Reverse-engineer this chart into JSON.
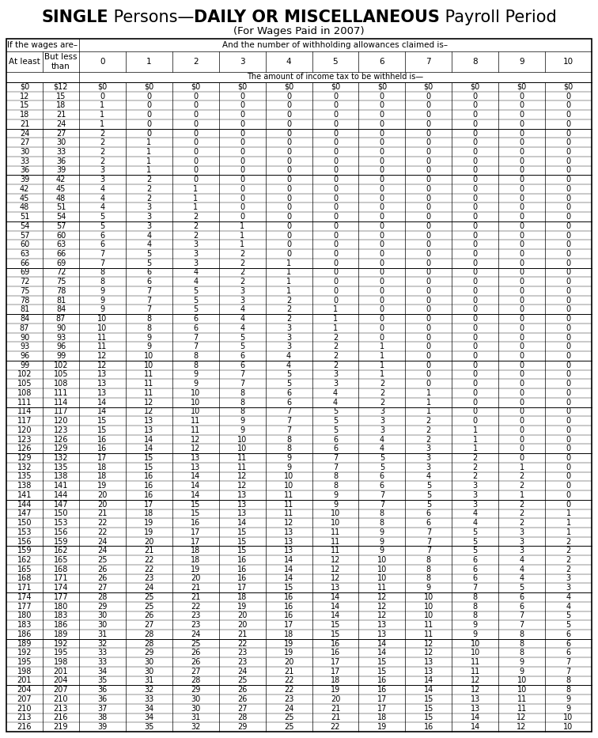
{
  "title_bold": "SINGLE",
  "title_regular": " Persons—",
  "title_bold2": "DAILY OR MISCELLANEOUS",
  "title_regular2": " Payroll Period",
  "subtitle": "(For Wages Paid in 2007)",
  "col_header_left": "If the wages are–",
  "col_header_right": "And the number of withholding allowances claimed is–",
  "col_sub_header": "The amount of income tax to be withheld is—",
  "col_at_least": "At least",
  "col_but_less": "But less\nthan",
  "allowances": [
    "0",
    "1",
    "2",
    "3",
    "4",
    "5",
    "6",
    "7",
    "8",
    "9",
    "10"
  ],
  "title_fontsize": 15,
  "subtitle_fontsize": 9.5,
  "header_fontsize": 7.5,
  "data_fontsize": 7.0,
  "bg_color": "#f0f0f0",
  "rows": [
    [
      "$0",
      "$12",
      "$0",
      "$0",
      "$0",
      "$0",
      "$0",
      "$0",
      "$0",
      "$0",
      "$0",
      "$0",
      "$0"
    ],
    [
      "12",
      "15",
      "0",
      "0",
      "0",
      "0",
      "0",
      "0",
      "0",
      "0",
      "0",
      "0",
      "0"
    ],
    [
      "15",
      "18",
      "1",
      "0",
      "0",
      "0",
      "0",
      "0",
      "0",
      "0",
      "0",
      "0",
      "0"
    ],
    [
      "18",
      "21",
      "1",
      "0",
      "0",
      "0",
      "0",
      "0",
      "0",
      "0",
      "0",
      "0",
      "0"
    ],
    [
      "21",
      "24",
      "1",
      "0",
      "0",
      "0",
      "0",
      "0",
      "0",
      "0",
      "0",
      "0",
      "0"
    ],
    [
      "24",
      "27",
      "2",
      "0",
      "0",
      "0",
      "0",
      "0",
      "0",
      "0",
      "0",
      "0",
      "0"
    ],
    [
      "27",
      "30",
      "2",
      "1",
      "0",
      "0",
      "0",
      "0",
      "0",
      "0",
      "0",
      "0",
      "0"
    ],
    [
      "30",
      "33",
      "2",
      "1",
      "0",
      "0",
      "0",
      "0",
      "0",
      "0",
      "0",
      "0",
      "0"
    ],
    [
      "33",
      "36",
      "2",
      "1",
      "0",
      "0",
      "0",
      "0",
      "0",
      "0",
      "0",
      "0",
      "0"
    ],
    [
      "36",
      "39",
      "3",
      "1",
      "0",
      "0",
      "0",
      "0",
      "0",
      "0",
      "0",
      "0",
      "0"
    ],
    [
      "39",
      "42",
      "3",
      "2",
      "0",
      "0",
      "0",
      "0",
      "0",
      "0",
      "0",
      "0",
      "0"
    ],
    [
      "42",
      "45",
      "4",
      "2",
      "1",
      "0",
      "0",
      "0",
      "0",
      "0",
      "0",
      "0",
      "0"
    ],
    [
      "45",
      "48",
      "4",
      "2",
      "1",
      "0",
      "0",
      "0",
      "0",
      "0",
      "0",
      "0",
      "0"
    ],
    [
      "48",
      "51",
      "4",
      "3",
      "1",
      "0",
      "0",
      "0",
      "0",
      "0",
      "0",
      "0",
      "0"
    ],
    [
      "51",
      "54",
      "5",
      "3",
      "2",
      "0",
      "0",
      "0",
      "0",
      "0",
      "0",
      "0",
      "0"
    ],
    [
      "54",
      "57",
      "5",
      "3",
      "2",
      "1",
      "0",
      "0",
      "0",
      "0",
      "0",
      "0",
      "0"
    ],
    [
      "57",
      "60",
      "6",
      "4",
      "2",
      "1",
      "0",
      "0",
      "0",
      "0",
      "0",
      "0",
      "0"
    ],
    [
      "60",
      "63",
      "6",
      "4",
      "3",
      "1",
      "0",
      "0",
      "0",
      "0",
      "0",
      "0",
      "0"
    ],
    [
      "63",
      "66",
      "7",
      "5",
      "3",
      "2",
      "0",
      "0",
      "0",
      "0",
      "0",
      "0",
      "0"
    ],
    [
      "66",
      "69",
      "7",
      "5",
      "3",
      "2",
      "1",
      "0",
      "0",
      "0",
      "0",
      "0",
      "0"
    ],
    [
      "69",
      "72",
      "8",
      "6",
      "4",
      "2",
      "1",
      "0",
      "0",
      "0",
      "0",
      "0",
      "0"
    ],
    [
      "72",
      "75",
      "8",
      "6",
      "4",
      "2",
      "1",
      "0",
      "0",
      "0",
      "0",
      "0",
      "0"
    ],
    [
      "75",
      "78",
      "9",
      "7",
      "5",
      "3",
      "1",
      "0",
      "0",
      "0",
      "0",
      "0",
      "0"
    ],
    [
      "78",
      "81",
      "9",
      "7",
      "5",
      "3",
      "2",
      "0",
      "0",
      "0",
      "0",
      "0",
      "0"
    ],
    [
      "81",
      "84",
      "9",
      "7",
      "5",
      "4",
      "2",
      "1",
      "0",
      "0",
      "0",
      "0",
      "0"
    ],
    [
      "84",
      "87",
      "10",
      "8",
      "6",
      "4",
      "2",
      "1",
      "0",
      "0",
      "0",
      "0",
      "0"
    ],
    [
      "87",
      "90",
      "10",
      "8",
      "6",
      "4",
      "3",
      "1",
      "0",
      "0",
      "0",
      "0",
      "0"
    ],
    [
      "90",
      "93",
      "11",
      "9",
      "7",
      "5",
      "3",
      "2",
      "0",
      "0",
      "0",
      "0",
      "0"
    ],
    [
      "93",
      "96",
      "11",
      "9",
      "7",
      "5",
      "3",
      "2",
      "1",
      "0",
      "0",
      "0",
      "0"
    ],
    [
      "96",
      "99",
      "12",
      "10",
      "8",
      "6",
      "4",
      "2",
      "1",
      "0",
      "0",
      "0",
      "0"
    ],
    [
      "99",
      "102",
      "12",
      "10",
      "8",
      "6",
      "4",
      "2",
      "1",
      "0",
      "0",
      "0",
      "0"
    ],
    [
      "102",
      "105",
      "13",
      "11",
      "9",
      "7",
      "5",
      "3",
      "1",
      "0",
      "0",
      "0",
      "0"
    ],
    [
      "105",
      "108",
      "13",
      "11",
      "9",
      "7",
      "5",
      "3",
      "2",
      "0",
      "0",
      "0",
      "0"
    ],
    [
      "108",
      "111",
      "13",
      "11",
      "10",
      "8",
      "6",
      "4",
      "2",
      "1",
      "0",
      "0",
      "0"
    ],
    [
      "111",
      "114",
      "14",
      "12",
      "10",
      "8",
      "6",
      "4",
      "2",
      "1",
      "0",
      "0",
      "0"
    ],
    [
      "114",
      "117",
      "14",
      "12",
      "10",
      "8",
      "7",
      "5",
      "3",
      "1",
      "0",
      "0",
      "0"
    ],
    [
      "117",
      "120",
      "15",
      "13",
      "11",
      "9",
      "7",
      "5",
      "3",
      "2",
      "0",
      "0",
      "0"
    ],
    [
      "120",
      "123",
      "15",
      "13",
      "11",
      "9",
      "7",
      "5",
      "3",
      "2",
      "1",
      "0",
      "0"
    ],
    [
      "123",
      "126",
      "16",
      "14",
      "12",
      "10",
      "8",
      "6",
      "4",
      "2",
      "1",
      "0",
      "0"
    ],
    [
      "126",
      "129",
      "16",
      "14",
      "12",
      "10",
      "8",
      "6",
      "4",
      "3",
      "1",
      "0",
      "0"
    ],
    [
      "129",
      "132",
      "17",
      "15",
      "13",
      "11",
      "9",
      "7",
      "5",
      "3",
      "2",
      "0",
      "0"
    ],
    [
      "132",
      "135",
      "18",
      "15",
      "13",
      "11",
      "9",
      "7",
      "5",
      "3",
      "2",
      "1",
      "0"
    ],
    [
      "135",
      "138",
      "18",
      "16",
      "14",
      "12",
      "10",
      "8",
      "6",
      "4",
      "2",
      "2",
      "0"
    ],
    [
      "138",
      "141",
      "19",
      "16",
      "14",
      "12",
      "10",
      "8",
      "6",
      "5",
      "3",
      "2",
      "0"
    ],
    [
      "141",
      "144",
      "20",
      "16",
      "14",
      "13",
      "11",
      "9",
      "7",
      "5",
      "3",
      "1",
      "0"
    ],
    [
      "144",
      "147",
      "20",
      "17",
      "15",
      "13",
      "11",
      "9",
      "7",
      "5",
      "3",
      "2",
      "0"
    ],
    [
      "147",
      "150",
      "21",
      "18",
      "15",
      "13",
      "11",
      "10",
      "8",
      "6",
      "4",
      "2",
      "1"
    ],
    [
      "150",
      "153",
      "22",
      "19",
      "16",
      "14",
      "12",
      "10",
      "8",
      "6",
      "4",
      "2",
      "1"
    ],
    [
      "153",
      "156",
      "22",
      "19",
      "17",
      "15",
      "13",
      "11",
      "9",
      "7",
      "5",
      "3",
      "1"
    ],
    [
      "156",
      "159",
      "24",
      "20",
      "17",
      "15",
      "13",
      "11",
      "9",
      "7",
      "5",
      "3",
      "2"
    ],
    [
      "159",
      "162",
      "24",
      "21",
      "18",
      "15",
      "13",
      "11",
      "9",
      "7",
      "5",
      "3",
      "2"
    ],
    [
      "162",
      "165",
      "25",
      "22",
      "18",
      "16",
      "14",
      "12",
      "10",
      "8",
      "6",
      "4",
      "2"
    ],
    [
      "165",
      "168",
      "26",
      "22",
      "19",
      "16",
      "14",
      "12",
      "10",
      "8",
      "6",
      "4",
      "2"
    ],
    [
      "168",
      "171",
      "26",
      "23",
      "20",
      "16",
      "14",
      "12",
      "10",
      "8",
      "6",
      "4",
      "3"
    ],
    [
      "171",
      "174",
      "27",
      "24",
      "21",
      "17",
      "15",
      "13",
      "11",
      "9",
      "7",
      "5",
      "3"
    ],
    [
      "174",
      "177",
      "28",
      "25",
      "21",
      "18",
      "16",
      "14",
      "12",
      "10",
      "8",
      "6",
      "4"
    ],
    [
      "177",
      "180",
      "29",
      "25",
      "22",
      "19",
      "16",
      "14",
      "12",
      "10",
      "8",
      "6",
      "4"
    ],
    [
      "180",
      "183",
      "30",
      "26",
      "23",
      "20",
      "16",
      "14",
      "12",
      "10",
      "8",
      "7",
      "5"
    ],
    [
      "183",
      "186",
      "30",
      "27",
      "23",
      "20",
      "17",
      "15",
      "13",
      "11",
      "9",
      "7",
      "5"
    ],
    [
      "186",
      "189",
      "31",
      "28",
      "24",
      "21",
      "18",
      "15",
      "13",
      "11",
      "9",
      "8",
      "6"
    ],
    [
      "189",
      "192",
      "32",
      "28",
      "25",
      "22",
      "19",
      "16",
      "14",
      "12",
      "10",
      "8",
      "6"
    ],
    [
      "192",
      "195",
      "33",
      "29",
      "26",
      "23",
      "19",
      "16",
      "14",
      "12",
      "10",
      "8",
      "6"
    ],
    [
      "195",
      "198",
      "33",
      "30",
      "26",
      "23",
      "20",
      "17",
      "15",
      "13",
      "11",
      "9",
      "7"
    ],
    [
      "198",
      "201",
      "34",
      "30",
      "27",
      "24",
      "21",
      "17",
      "15",
      "13",
      "11",
      "9",
      "7"
    ],
    [
      "201",
      "204",
      "35",
      "31",
      "28",
      "25",
      "22",
      "18",
      "16",
      "14",
      "12",
      "10",
      "8"
    ],
    [
      "204",
      "207",
      "36",
      "32",
      "29",
      "26",
      "22",
      "19",
      "16",
      "14",
      "12",
      "10",
      "8"
    ],
    [
      "207",
      "210",
      "36",
      "33",
      "30",
      "26",
      "23",
      "20",
      "17",
      "15",
      "13",
      "11",
      "9"
    ],
    [
      "210",
      "213",
      "37",
      "34",
      "30",
      "27",
      "24",
      "21",
      "17",
      "15",
      "13",
      "11",
      "9"
    ],
    [
      "213",
      "216",
      "38",
      "34",
      "31",
      "28",
      "25",
      "21",
      "18",
      "15",
      "14",
      "12",
      "10"
    ],
    [
      "216",
      "219",
      "39",
      "35",
      "32",
      "29",
      "25",
      "22",
      "19",
      "16",
      "14",
      "12",
      "10"
    ]
  ]
}
